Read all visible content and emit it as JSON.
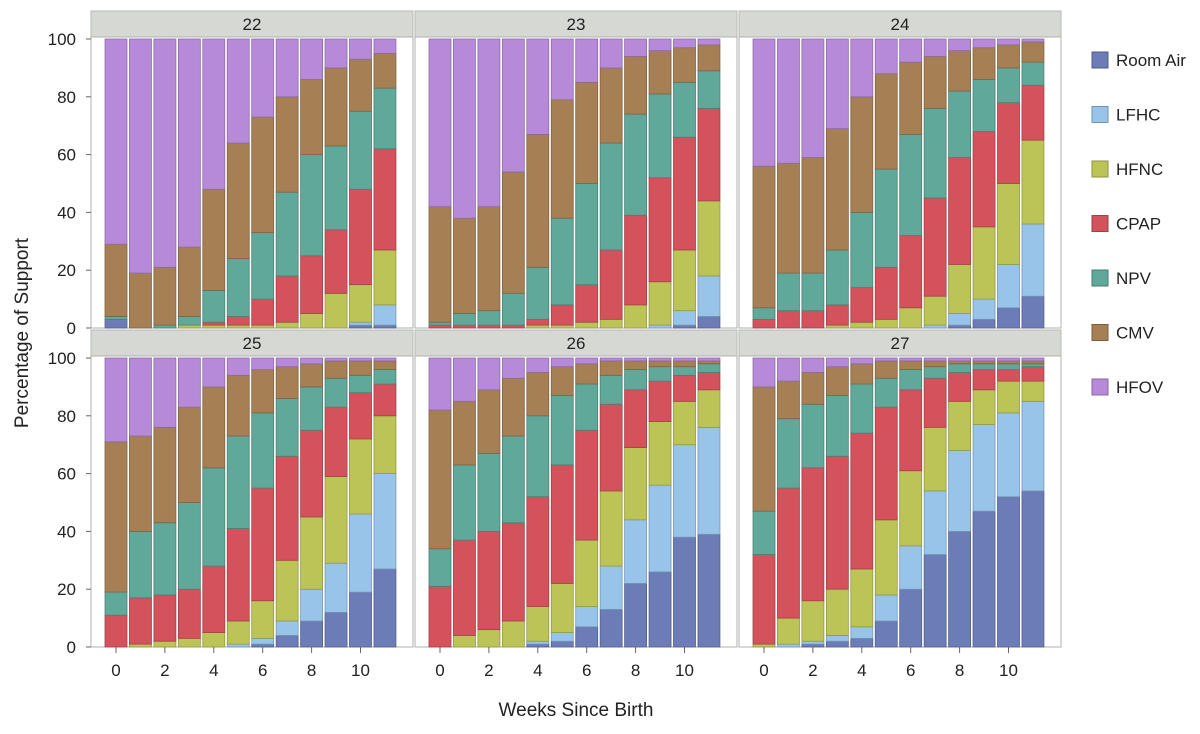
{
  "chart_data": {
    "type": "bar",
    "stacked": true,
    "facet_label_kind": "gestational age (weeks)",
    "xlabel": "Weeks Since Birth",
    "ylabel": "Percentage of Support",
    "ylim": [
      0,
      100
    ],
    "yticks": [
      0,
      20,
      40,
      60,
      80,
      100
    ],
    "x": [
      0,
      1,
      2,
      3,
      4,
      5,
      6,
      7,
      8,
      9,
      10,
      11
    ],
    "xticks": [
      0,
      2,
      4,
      6,
      8,
      10
    ],
    "grid": false,
    "legend_position": "right",
    "series_order": [
      "Room Air",
      "LFHC",
      "HFNC",
      "CPAP",
      "NPV",
      "CMV",
      "HFOV"
    ],
    "legend": [
      {
        "name": "Room Air",
        "color": "#6c7cb6"
      },
      {
        "name": "LFHC",
        "color": "#98c4ea"
      },
      {
        "name": "HFNC",
        "color": "#bcc457"
      },
      {
        "name": "CPAP",
        "color": "#d4525b"
      },
      {
        "name": "NPV",
        "color": "#5fa89a"
      },
      {
        "name": "CMV",
        "color": "#a67f55"
      },
      {
        "name": "HFOV",
        "color": "#b68ad8"
      }
    ],
    "panels": [
      {
        "title": "22",
        "cumulative_tops": {
          "Room Air": [
            3,
            0,
            0,
            0,
            0,
            0,
            0,
            0,
            0,
            0,
            1,
            1
          ],
          "LFHC": [
            3,
            0,
            0,
            0,
            0,
            0,
            0,
            0,
            0,
            0,
            2,
            8
          ],
          "HFNC": [
            3,
            0,
            0,
            1,
            1,
            1,
            1,
            2,
            5,
            12,
            15,
            27
          ],
          "CPAP": [
            3,
            0,
            0,
            1,
            2,
            4,
            10,
            18,
            25,
            34,
            48,
            62
          ],
          "NPV": [
            4,
            0,
            1,
            4,
            13,
            24,
            33,
            47,
            60,
            63,
            75,
            83
          ],
          "CMV": [
            29,
            19,
            21,
            28,
            48,
            64,
            73,
            80,
            86,
            90,
            93,
            95
          ],
          "HFOV": [
            100,
            100,
            100,
            100,
            100,
            100,
            100,
            100,
            100,
            100,
            100,
            100
          ]
        }
      },
      {
        "title": "23",
        "cumulative_tops": {
          "Room Air": [
            0,
            0,
            0,
            0,
            0,
            0,
            0,
            0,
            0,
            0,
            1,
            4
          ],
          "LFHC": [
            0,
            0,
            0,
            0,
            0,
            0,
            0,
            0,
            0,
            1,
            6,
            18
          ],
          "HFNC": [
            0,
            0,
            0,
            0,
            1,
            1,
            2,
            3,
            8,
            16,
            27,
            44
          ],
          "CPAP": [
            1,
            1,
            1,
            1,
            3,
            8,
            15,
            27,
            39,
            52,
            66,
            76
          ],
          "NPV": [
            2,
            5,
            6,
            12,
            21,
            38,
            50,
            64,
            74,
            81,
            85,
            89
          ],
          "CMV": [
            42,
            38,
            42,
            54,
            67,
            79,
            85,
            90,
            94,
            96,
            97,
            98
          ],
          "HFOV": [
            100,
            100,
            100,
            100,
            100,
            100,
            100,
            100,
            100,
            100,
            100,
            100
          ]
        }
      },
      {
        "title": "24",
        "cumulative_tops": {
          "Room Air": [
            0,
            0,
            0,
            0,
            0,
            0,
            0,
            0,
            1,
            3,
            7,
            11
          ],
          "LFHC": [
            0,
            0,
            0,
            0,
            0,
            0,
            0,
            1,
            5,
            10,
            22,
            36
          ],
          "HFNC": [
            0,
            0,
            0,
            1,
            2,
            3,
            7,
            11,
            22,
            35,
            50,
            65
          ],
          "CPAP": [
            3,
            6,
            6,
            8,
            14,
            21,
            32,
            45,
            59,
            68,
            78,
            84
          ],
          "NPV": [
            7,
            19,
            19,
            27,
            40,
            55,
            67,
            76,
            82,
            86,
            90,
            92
          ],
          "CMV": [
            56,
            57,
            59,
            69,
            80,
            88,
            92,
            94,
            96,
            97,
            98,
            99
          ],
          "HFOV": [
            100,
            100,
            100,
            100,
            100,
            100,
            100,
            100,
            100,
            100,
            100,
            100
          ]
        }
      },
      {
        "title": "25",
        "cumulative_tops": {
          "Room Air": [
            0,
            0,
            0,
            0,
            0,
            0,
            1,
            4,
            9,
            12,
            19,
            27
          ],
          "LFHC": [
            0,
            0,
            0,
            0,
            0,
            1,
            3,
            9,
            20,
            29,
            46,
            60
          ],
          "HFNC": [
            0,
            1,
            2,
            3,
            5,
            9,
            16,
            30,
            45,
            59,
            72,
            80
          ],
          "CPAP": [
            11,
            17,
            18,
            20,
            28,
            41,
            55,
            66,
            75,
            83,
            88,
            91
          ],
          "NPV": [
            19,
            40,
            43,
            50,
            62,
            73,
            81,
            86,
            90,
            93,
            94,
            96
          ],
          "CMV": [
            71,
            73,
            76,
            83,
            90,
            94,
            96,
            97,
            98,
            99,
            99,
            99
          ],
          "HFOV": [
            100,
            100,
            100,
            100,
            100,
            100,
            100,
            100,
            100,
            100,
            100,
            100
          ]
        }
      },
      {
        "title": "26",
        "cumulative_tops": {
          "Room Air": [
            0,
            0,
            0,
            0,
            1,
            2,
            7,
            13,
            22,
            26,
            38,
            39
          ],
          "LFHC": [
            0,
            0,
            0,
            0,
            2,
            5,
            14,
            28,
            44,
            56,
            70,
            76
          ],
          "HFNC": [
            0,
            4,
            6,
            9,
            14,
            22,
            37,
            54,
            69,
            78,
            85,
            89
          ],
          "CPAP": [
            21,
            37,
            40,
            43,
            52,
            63,
            75,
            84,
            89,
            92,
            94,
            95
          ],
          "NPV": [
            34,
            63,
            67,
            73,
            80,
            87,
            91,
            94,
            96,
            97,
            97,
            98
          ],
          "CMV": [
            82,
            85,
            89,
            93,
            95,
            97,
            98,
            99,
            99,
            99,
            99,
            99
          ],
          "HFOV": [
            100,
            100,
            100,
            100,
            100,
            100,
            100,
            100,
            100,
            100,
            100,
            100
          ]
        }
      },
      {
        "title": "27",
        "cumulative_tops": {
          "Room Air": [
            0,
            0,
            1,
            2,
            3,
            9,
            20,
            32,
            40,
            47,
            52,
            54
          ],
          "LFHC": [
            0,
            1,
            2,
            4,
            7,
            18,
            35,
            54,
            68,
            77,
            81,
            85
          ],
          "HFNC": [
            1,
            10,
            16,
            20,
            27,
            44,
            61,
            76,
            85,
            89,
            92,
            92
          ],
          "CPAP": [
            32,
            55,
            62,
            66,
            74,
            83,
            89,
            93,
            95,
            96,
            96,
            97
          ],
          "NPV": [
            47,
            79,
            84,
            87,
            91,
            93,
            96,
            97,
            98,
            98,
            98,
            98
          ],
          "CMV": [
            90,
            92,
            95,
            97,
            98,
            99,
            99,
            99,
            99,
            99,
            99,
            99
          ],
          "HFOV": [
            100,
            100,
            100,
            100,
            100,
            100,
            100,
            100,
            100,
            100,
            100,
            100
          ]
        }
      }
    ]
  }
}
